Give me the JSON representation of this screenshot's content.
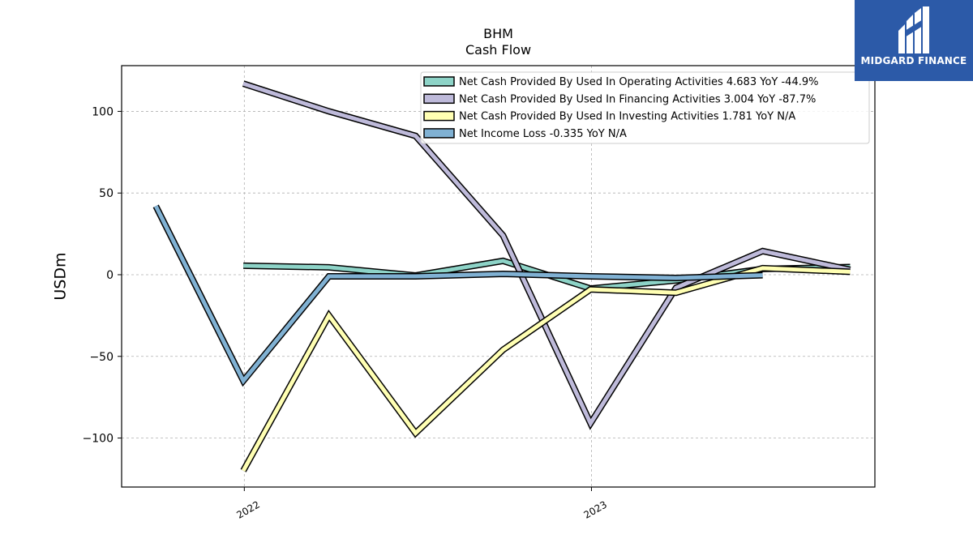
{
  "chart_data": {
    "type": "line",
    "title": "BHM",
    "subtitle": "Cash Flow",
    "ylabel": "USDm",
    "xlabel": "",
    "ylim": [
      -130,
      128
    ],
    "xlim": [
      "2021-08-25",
      "2023-10-26"
    ],
    "x_ticks": [
      {
        "label": "2022",
        "date": "2022-01-01"
      },
      {
        "label": "2023",
        "date": "2023-01-01"
      }
    ],
    "y_ticks": [
      100,
      50,
      0,
      -50,
      -100
    ],
    "y_tick_labels": [
      "100",
      "50",
      "0",
      "−50",
      "−100"
    ],
    "grid": true,
    "legend_position": "top-right",
    "series": [
      {
        "name": "Net Cash Provided By Used In Operating Activities  4.683 YoY -44.9%",
        "color": "#8dd3c7",
        "points": [
          {
            "x": "2021-12-31",
            "y": 5.5
          },
          {
            "x": "2022-03-31",
            "y": 4.5
          },
          {
            "x": "2022-06-30",
            "y": -0.5
          },
          {
            "x": "2022-09-30",
            "y": 8.5
          },
          {
            "x": "2022-12-31",
            "y": -8.5
          },
          {
            "x": "2023-03-31",
            "y": -3.5
          },
          {
            "x": "2023-06-30",
            "y": 3.5
          },
          {
            "x": "2023-09-30",
            "y": 4.7
          }
        ]
      },
      {
        "name": "Net Cash Provided By Used In Financing Activities  3.004 YoY -87.7%",
        "color": "#bebada",
        "points": [
          {
            "x": "2021-12-31",
            "y": 117
          },
          {
            "x": "2022-03-31",
            "y": 100
          },
          {
            "x": "2022-06-30",
            "y": 85
          },
          {
            "x": "2022-09-30",
            "y": 24
          },
          {
            "x": "2022-12-31",
            "y": -91
          },
          {
            "x": "2023-03-31",
            "y": -8
          },
          {
            "x": "2023-06-30",
            "y": 14.5
          },
          {
            "x": "2023-09-30",
            "y": 3.0
          }
        ]
      },
      {
        "name": "Net Cash Provided By Used In Investing Activities  1.781 YoY N/A",
        "color": "#ffffb3",
        "points": [
          {
            "x": "2021-12-31",
            "y": -120
          },
          {
            "x": "2022-03-31",
            "y": -25
          },
          {
            "x": "2022-06-30",
            "y": -97
          },
          {
            "x": "2022-09-30",
            "y": -46
          },
          {
            "x": "2022-12-31",
            "y": -9
          },
          {
            "x": "2023-03-31",
            "y": -11
          },
          {
            "x": "2023-06-30",
            "y": 4
          },
          {
            "x": "2023-09-30",
            "y": 1.8
          }
        ]
      },
      {
        "name": "Net Income Loss  -0.335 YoY N/A",
        "color": "#80b1d3",
        "points": [
          {
            "x": "2021-09-30",
            "y": 42
          },
          {
            "x": "2021-12-31",
            "y": -65
          },
          {
            "x": "2022-03-31",
            "y": -1
          },
          {
            "x": "2022-06-30",
            "y": -1
          },
          {
            "x": "2022-09-30",
            "y": 0.5
          },
          {
            "x": "2022-12-31",
            "y": -1
          },
          {
            "x": "2023-03-31",
            "y": -2
          },
          {
            "x": "2023-06-30",
            "y": -0.3
          }
        ]
      }
    ]
  },
  "logo": {
    "text": "MIDGARD FINANCE",
    "icon": "midgard-finance-logo-icon",
    "background": "#2c5aa8"
  }
}
